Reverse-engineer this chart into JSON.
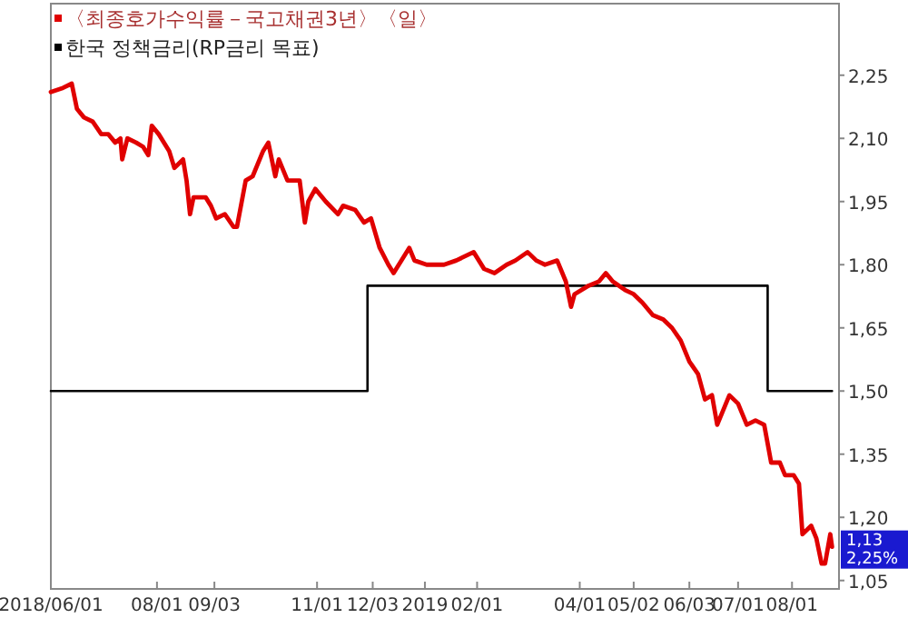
{
  "chart_data": {
    "type": "line",
    "legend": "top left",
    "xlim": [
      "2018-06-01",
      "2019-08-28"
    ],
    "xticks": [
      {
        "value": "2018-06-01",
        "label": "2018/06/01"
      },
      {
        "value": "2018-08-01",
        "label": "08/01"
      },
      {
        "value": "2018-09-03",
        "label": "09/03"
      },
      {
        "value": "2018-11-01",
        "label": "11/01"
      },
      {
        "value": "2018-12-03",
        "label": "12/03"
      },
      {
        "value": "2019-01-02",
        "label": "2019"
      },
      {
        "value": "2019-02-01",
        "label": "02/01"
      },
      {
        "value": "2019-04-01",
        "label": "04/01"
      },
      {
        "value": "2019-05-02",
        "label": "05/02"
      },
      {
        "value": "2019-06-03",
        "label": "06/03"
      },
      {
        "value": "2019-07-01",
        "label": "07/01"
      },
      {
        "value": "2019-08-01",
        "label": "08/01"
      }
    ],
    "ylim": [
      1.03,
      2.42
    ],
    "yticks": [
      {
        "value": 1.05,
        "label": "1,05"
      },
      {
        "value": 1.2,
        "label": "1,20"
      },
      {
        "value": 1.35,
        "label": "1,35"
      },
      {
        "value": 1.5,
        "label": "1,50"
      },
      {
        "value": 1.65,
        "label": "1,65"
      },
      {
        "value": 1.8,
        "label": "1,80"
      },
      {
        "value": 1.95,
        "label": "1,95"
      },
      {
        "value": 2.1,
        "label": "2,10"
      },
      {
        "value": 2.25,
        "label": "2,25"
      }
    ],
    "annotations": [
      "1,13",
      "2,25%"
    ],
    "series": [
      {
        "name": "〈최종호가수익률－국고채권3년〉〈일〉",
        "color": "#e00000",
        "x": [
          "2018-06-01",
          "2018-06-08",
          "2018-06-13",
          "2018-06-16",
          "2018-06-20",
          "2018-06-25",
          "2018-06-30",
          "2018-07-04",
          "2018-07-08",
          "2018-07-11",
          "2018-07-12",
          "2018-07-15",
          "2018-07-20",
          "2018-07-24",
          "2018-07-27",
          "2018-07-29",
          "2018-08-02",
          "2018-08-08",
          "2018-08-11",
          "2018-08-16",
          "2018-08-18",
          "2018-08-20",
          "2018-08-22",
          "2018-08-29",
          "2018-09-01",
          "2018-09-04",
          "2018-09-09",
          "2018-09-14",
          "2018-09-16",
          "2018-09-21",
          "2018-09-25",
          "2018-10-01",
          "2018-10-04",
          "2018-10-08",
          "2018-10-10",
          "2018-10-15",
          "2018-10-22",
          "2018-10-25",
          "2018-10-27",
          "2018-10-31",
          "2018-11-06",
          "2018-11-13",
          "2018-11-16",
          "2018-11-23",
          "2018-11-28",
          "2018-12-02",
          "2018-12-07",
          "2018-12-12",
          "2018-12-15",
          "2018-12-24",
          "2018-12-27",
          "2019-01-03",
          "2019-01-13",
          "2019-01-20",
          "2019-01-30",
          "2019-02-05",
          "2019-02-11",
          "2019-02-18",
          "2019-02-23",
          "2019-03-02",
          "2019-03-07",
          "2019-03-12",
          "2019-03-19",
          "2019-03-24",
          "2019-03-27",
          "2019-03-29",
          "2019-04-06",
          "2019-04-12",
          "2019-04-16",
          "2019-04-20",
          "2019-04-27",
          "2019-05-02",
          "2019-05-07",
          "2019-05-13",
          "2019-05-19",
          "2019-05-24",
          "2019-05-29",
          "2019-06-03",
          "2019-06-08",
          "2019-06-12",
          "2019-06-16",
          "2019-06-19",
          "2019-06-26",
          "2019-07-01",
          "2019-07-06",
          "2019-07-11",
          "2019-07-16",
          "2019-07-20",
          "2019-07-25",
          "2019-07-28",
          "2019-08-02",
          "2019-08-05",
          "2019-08-07",
          "2019-08-12",
          "2019-08-15",
          "2019-08-18",
          "2019-08-20",
          "2019-08-23",
          "2019-08-24"
        ],
        "values": [
          2.21,
          2.22,
          2.23,
          2.17,
          2.15,
          2.14,
          2.11,
          2.11,
          2.09,
          2.1,
          2.05,
          2.1,
          2.09,
          2.08,
          2.06,
          2.13,
          2.11,
          2.07,
          2.03,
          2.05,
          2.0,
          1.92,
          1.96,
          1.96,
          1.94,
          1.91,
          1.92,
          1.89,
          1.89,
          2.0,
          2.01,
          2.07,
          2.09,
          2.01,
          2.05,
          2.0,
          2.0,
          1.9,
          1.95,
          1.98,
          1.95,
          1.92,
          1.94,
          1.93,
          1.9,
          1.91,
          1.84,
          1.8,
          1.78,
          1.84,
          1.81,
          1.8,
          1.8,
          1.81,
          1.83,
          1.79,
          1.78,
          1.8,
          1.81,
          1.83,
          1.81,
          1.8,
          1.81,
          1.76,
          1.7,
          1.73,
          1.75,
          1.76,
          1.78,
          1.76,
          1.74,
          1.73,
          1.71,
          1.68,
          1.67,
          1.65,
          1.62,
          1.57,
          1.54,
          1.48,
          1.49,
          1.42,
          1.49,
          1.47,
          1.42,
          1.43,
          1.42,
          1.33,
          1.33,
          1.3,
          1.3,
          1.28,
          1.16,
          1.18,
          1.15,
          1.09,
          1.09,
          1.16,
          1.13
        ]
      },
      {
        "name": "한국 정책금리(RP금리 목표)",
        "color": "#000000",
        "type": "step",
        "x": [
          "2018-06-01",
          "2018-11-30",
          "2019-07-18",
          "2019-08-24"
        ],
        "values": [
          1.5,
          1.75,
          1.5,
          1.5
        ]
      }
    ]
  }
}
